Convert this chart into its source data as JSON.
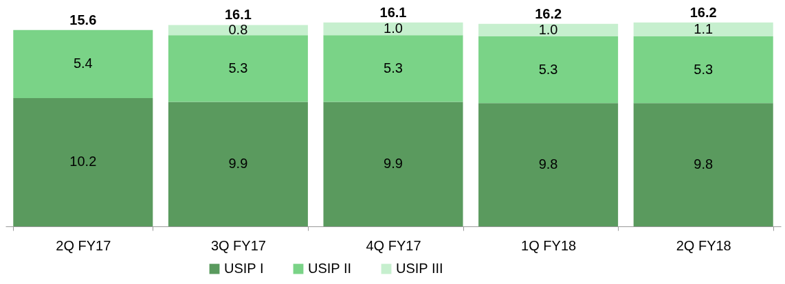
{
  "chart_data": {
    "type": "bar",
    "stacked": true,
    "categories": [
      "2Q FY17",
      "3Q FY17",
      "4Q FY17",
      "1Q FY18",
      "2Q FY18"
    ],
    "series": [
      {
        "name": "USIP I",
        "color": "#5a9a5e",
        "values": [
          10.2,
          9.9,
          9.9,
          9.8,
          9.8
        ],
        "value_labels": [
          "10.2",
          "9.9",
          "9.9",
          "9.8",
          "9.8"
        ]
      },
      {
        "name": "USIP II",
        "color": "#7ad387",
        "values": [
          5.4,
          5.3,
          5.3,
          5.3,
          5.3
        ],
        "value_labels": [
          "5.4",
          "5.3",
          "5.3",
          "5.3",
          "5.3"
        ]
      },
      {
        "name": "USIP III",
        "color": "#c6efce",
        "values": [
          null,
          0.8,
          1.0,
          1.0,
          1.1
        ],
        "value_labels": [
          null,
          "0.8",
          "1.0",
          "1.0",
          "1.1"
        ]
      }
    ],
    "totals": [
      "15.6",
      "16.1",
      "16.1",
      "16.2",
      "16.2"
    ],
    "legend": "bottom"
  }
}
